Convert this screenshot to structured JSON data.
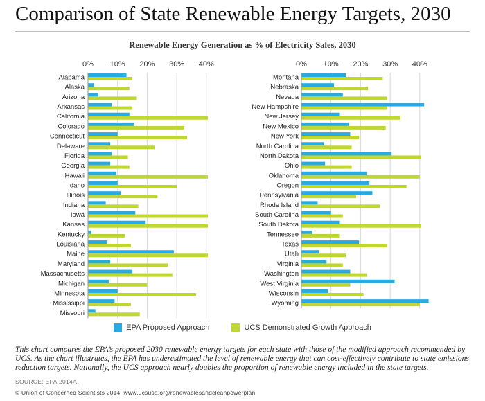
{
  "title": "Comparison of State Renewable Energy Targets, 2030",
  "subtitle": "Renewable Energy Generation as % of Electricity Sales, 2030",
  "colors": {
    "epa": "#29abe2",
    "ucs": "#bfd730",
    "grid": "#d8d8d8"
  },
  "chart_data": [
    {
      "type": "bar",
      "orientation": "horizontal",
      "title": "Renewable Energy Generation as % of Electricity Sales, 2030",
      "xlabel": "",
      "ylabel": "",
      "xlim": [
        0,
        45
      ],
      "ticks": [
        0,
        10,
        20,
        30,
        40
      ],
      "tick_labels": [
        "0%",
        "10%",
        "20%",
        "30%",
        "40%"
      ],
      "categories": [
        "Alabama",
        "Alaska",
        "Arizona",
        "Arkansas",
        "California",
        "Colorado",
        "Connecticut",
        "Delaware",
        "Florida",
        "Georgia",
        "Hawaii",
        "Idaho",
        "Illinois",
        "Indiana",
        "Iowa",
        "Kansas",
        "Kentucky",
        "Louisiana",
        "Maine",
        "Maryland",
        "Massachusetts",
        "Michigan",
        "Minnesota",
        "Mississippi",
        "Missouri"
      ],
      "series": [
        {
          "name": "EPA Proposed Approach",
          "values": [
            13,
            2,
            3.5,
            8,
            14,
            15.5,
            10,
            7.5,
            8,
            7.5,
            9.5,
            10,
            11,
            6,
            16,
            19.5,
            1,
            6.5,
            29,
            7.5,
            15,
            7,
            10,
            9,
            2.5
          ]
        },
        {
          "name": "UCS Demonstrated Growth Approach",
          "values": [
            15,
            14,
            16.5,
            15,
            40.5,
            32.5,
            33.5,
            22.5,
            13.5,
            14,
            40.5,
            30,
            23.5,
            17,
            40.5,
            40.5,
            12.5,
            14.5,
            40.5,
            27,
            28.5,
            20,
            36.5,
            14.5,
            17.5
          ]
        }
      ]
    },
    {
      "type": "bar",
      "orientation": "horizontal",
      "title": "Renewable Energy Generation as % of Electricity Sales, 2030",
      "xlabel": "",
      "ylabel": "",
      "xlim": [
        0,
        45
      ],
      "ticks": [
        0,
        10,
        20,
        30,
        40
      ],
      "tick_labels": [
        "0%",
        "10%",
        "20%",
        "30%",
        "40%"
      ],
      "categories": [
        "Montana",
        "Nebraska",
        "Nevada",
        "New Hampshire",
        "New Jersey",
        "New Mexico",
        "New York",
        "North Carolina",
        "North Dakota",
        "Ohio",
        "Oklahoma",
        "Oregon",
        "Pennsylvania",
        "Rhode Island",
        "South Carolina",
        "South Dakota",
        "Tennessee",
        "Texas",
        "Utah",
        "Virginia",
        "Washington",
        "West Virginia",
        "Wisconsin",
        "Wyoming"
      ],
      "series": [
        {
          "name": "EPA Proposed Approach",
          "values": [
            15,
            11,
            14,
            41.5,
            13,
            16,
            16.5,
            7.5,
            30.5,
            8,
            22,
            23,
            24,
            5.5,
            10,
            13,
            3.5,
            19.5,
            6,
            8.5,
            16.5,
            31.5,
            9,
            43
          ]
        },
        {
          "name": "UCS Demonstrated Growth Approach",
          "values": [
            27.5,
            22.5,
            29,
            29,
            33.5,
            28.5,
            19.5,
            17,
            40.5,
            17,
            40,
            35.5,
            18.5,
            26.5,
            14,
            40.5,
            13,
            29,
            15,
            14,
            22,
            16.5,
            21,
            40
          ]
        }
      ]
    }
  ],
  "legend": {
    "epa_label": "EPA Proposed Approach",
    "ucs_label": "UCS Demonstrated Growth Approach"
  },
  "caption": "This chart compares the EPA’s proposed 2030 renewable energy targets for each state with those of the modified approach recommended by UCS. As the chart illustrates, the EPA has underestimated the level of renewable energy that can cost-effectively contribute to state emissions reduction targets. Nationally, the UCS approach nearly doubles the proportion of renewable energy included in the state targets.",
  "source": "SOURCE: EPA 2014A.",
  "copyright": "© Union of Concerned Scientists 2014; www.ucsusa.org/renewablesandcleanpowerplan"
}
